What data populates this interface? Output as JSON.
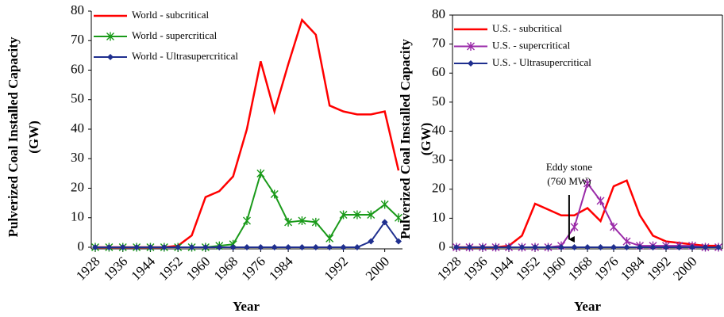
{
  "chart_data": [
    {
      "type": "line",
      "ylabel": [
        "Pulverized Coal Installed Capacity",
        "(GW)"
      ],
      "xlabel": "Year",
      "categories": [
        "1928",
        null,
        "1936",
        null,
        "1944",
        null,
        "1952",
        null,
        "1960",
        null,
        "1968",
        null,
        "1976",
        null,
        "1984",
        null,
        null,
        null,
        "1992",
        null,
        null,
        "2000",
        null
      ],
      "series": [
        {
          "name": "World - subcritical",
          "color": "#ff0000",
          "marker": "none",
          "values": [
            0,
            0,
            0,
            0,
            0,
            0,
            0.5,
            4,
            17,
            19,
            24,
            40,
            63,
            46,
            62,
            77,
            72,
            48,
            46,
            45,
            45,
            46,
            26
          ]
        },
        {
          "name": "World - supercritical",
          "color": "#1a9a1a",
          "marker": "star",
          "values": [
            0,
            0,
            0,
            0,
            0,
            0,
            0,
            0,
            0,
            0.5,
            1,
            9,
            25,
            18,
            8.5,
            9,
            8.5,
            3,
            11,
            11,
            11,
            14.5,
            10
          ]
        },
        {
          "name": "World - Ultrasupercritical",
          "color": "#1f2f8f",
          "marker": "diamond",
          "values": [
            0,
            0,
            0,
            0,
            0,
            0,
            0,
            0,
            0,
            0,
            0,
            0,
            0,
            0,
            0,
            0,
            0,
            0,
            0,
            0,
            2,
            8.5,
            2
          ]
        }
      ],
      "ylim": [
        0,
        80
      ],
      "yticks": [
        0,
        10,
        20,
        30,
        40,
        50,
        60,
        70,
        80
      ],
      "box": false
    },
    {
      "type": "line",
      "ylabel": [
        "Pulverized Coal Installed Capacity",
        "(GW)"
      ],
      "xlabel": "Year",
      "categories": [
        "1928",
        null,
        "1936",
        null,
        "1944",
        null,
        "1952",
        null,
        "1960",
        null,
        "1968",
        null,
        "1976",
        null,
        "1984",
        null,
        "1992",
        null,
        "2000",
        null,
        null
      ],
      "series": [
        {
          "name": "U.S. - subcritical",
          "color": "#ff0000",
          "marker": "none",
          "values": [
            0,
            0,
            0,
            0,
            0.5,
            4,
            15,
            13,
            11,
            11,
            13.5,
            9,
            21,
            23,
            11,
            4,
            2,
            1.5,
            1,
            0.5,
            0.5
          ]
        },
        {
          "name": "U.S. - supercritical",
          "color": "#9a2aa8",
          "marker": "star",
          "values": [
            0,
            0,
            0,
            0,
            0,
            0,
            0,
            0,
            0.5,
            7,
            22,
            16,
            7,
            2,
            0.5,
            0.5,
            0.5,
            0.5,
            0.5,
            0,
            0
          ]
        },
        {
          "name": "U.S. - Ultrasupercritical",
          "color": "#1f2f8f",
          "marker": "diamond",
          "values": [
            0,
            0,
            0,
            0,
            0,
            0,
            0,
            0,
            0,
            0,
            0,
            0,
            0,
            0,
            0,
            0,
            0,
            0,
            0,
            0,
            0
          ]
        }
      ],
      "annotation": [
        "Eddy stone",
        "(760 MW)"
      ],
      "ylim": [
        0,
        80
      ],
      "yticks": [
        0,
        10,
        20,
        30,
        40,
        50,
        60,
        70,
        80
      ],
      "box": true
    }
  ]
}
